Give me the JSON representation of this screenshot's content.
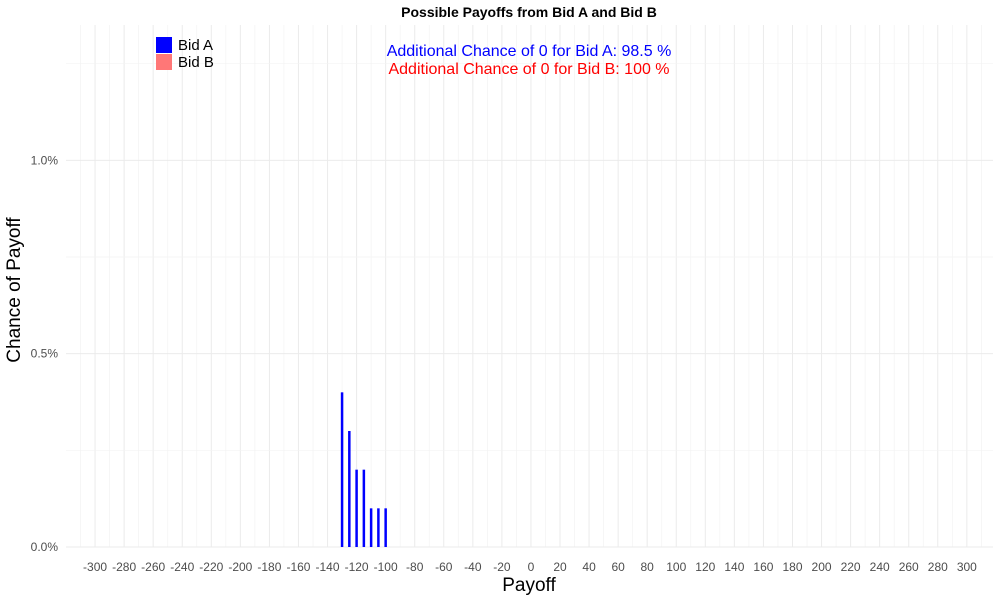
{
  "chart_data": {
    "type": "bar",
    "title": "Possible Payoffs from Bid A and Bid B",
    "xlabel": "Payoff",
    "ylabel": "Chance of Payoff",
    "xlim": [
      -320,
      318
    ],
    "ylim": [
      0,
      1.35
    ],
    "x_ticks": [
      -300,
      -280,
      -260,
      -240,
      -220,
      -200,
      -180,
      -160,
      -140,
      -120,
      -100,
      -80,
      -60,
      -40,
      -20,
      0,
      20,
      40,
      60,
      80,
      100,
      120,
      140,
      160,
      180,
      200,
      220,
      240,
      260,
      280,
      300
    ],
    "y_ticks": [
      0,
      0.5,
      1.0
    ],
    "y_tick_labels": [
      "0.0%",
      "0.5%",
      "1.0%"
    ],
    "grid": true,
    "legend_position": "top-left",
    "series": [
      {
        "name": "Bid A",
        "color": "#0000ff",
        "x": [
          -130,
          -125,
          -120,
          -115,
          -110,
          -105,
          -100
        ],
        "values": [
          0.4,
          0.3,
          0.2,
          0.2,
          0.1,
          0.1,
          0.1
        ]
      },
      {
        "name": "Bid B",
        "color": "#ff7777",
        "x": [],
        "values": []
      }
    ],
    "annotations": [
      {
        "text": "Additional Chance of 0 for Bid A:  98.5 %",
        "color": "#0000ff"
      },
      {
        "text": "Additional Chance of 0 for Bid B:  100 %",
        "color": "#ff0000"
      }
    ]
  }
}
